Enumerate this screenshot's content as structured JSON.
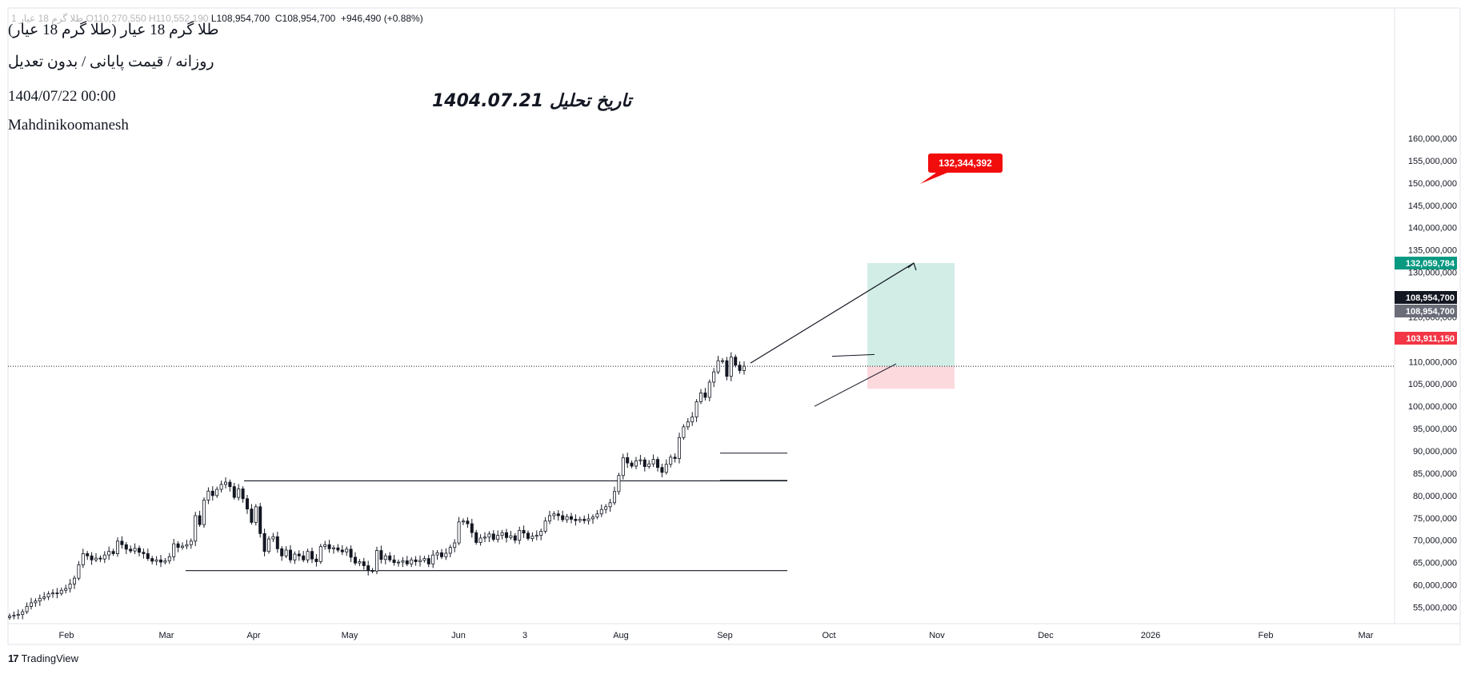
{
  "header": {
    "ohlc_faded": "1 طلا گرم 18 عیار O110,270,550  H110,552,190",
    "ohlc_low": "L108,954,700",
    "ohlc_close": "C108,954,700",
    "ohlc_change": "+946,490 (+0.88%)"
  },
  "info": {
    "symbol": "طلا گرم 18 عیار (طلا گرم 18 عیار)",
    "settings": "روزانه / قیمت پایانی / بدون تعدیل",
    "datetime": "1404/07/22 00:00",
    "author": "Mahdinikoomanesh"
  },
  "annotation": "تاریخ تحلیل 1404.07.21",
  "branding": {
    "logo_mark": "17",
    "name": "TradingView"
  },
  "colors": {
    "up": "#ffffff",
    "down": "#131722",
    "target_zone": "#d1ede6",
    "stop_zone": "#fcd9dd",
    "target_label": "#089981",
    "stop_label": "#f23645",
    "callout": "#f20d0d",
    "last_price_label": "#131722",
    "ref_price_label": "#6a6d78"
  },
  "chart_data": {
    "type": "candlestick",
    "x_tick_labels": [
      "Feb",
      "Mar",
      "Apr",
      "May",
      "Jun",
      "3",
      "Aug",
      "Sep",
      "Oct",
      "Nov",
      "Dec",
      "2026",
      "Feb",
      "Mar"
    ],
    "y_tick_labels": [
      "160,000,000",
      "155,000,000",
      "150,000,000",
      "145,000,000",
      "140,000,000",
      "135,000,000",
      "130,000,000",
      "125,000,000",
      "120,000,000",
      "115,000,000",
      "110,000,000",
      "105,000,000",
      "100,000,000",
      "95,000,000",
      "90,000,000",
      "85,000,000",
      "80,000,000",
      "75,000,000",
      "70,000,000",
      "65,000,000",
      "60,000,000",
      "55,000,000"
    ],
    "y_ticks": [
      160000000,
      155000000,
      150000000,
      145000000,
      140000000,
      135000000,
      130000000,
      125000000,
      120000000,
      115000000,
      110000000,
      105000000,
      100000000,
      95000000,
      90000000,
      85000000,
      80000000,
      75000000,
      70000000,
      65000000,
      60000000,
      55000000
    ],
    "ylim": [
      50000000,
      163000000
    ],
    "series_close_by_session": [
      53000000,
      53200000,
      53400000,
      54000000,
      55200000,
      56000000,
      56400000,
      57000000,
      57300000,
      58000000,
      58200000,
      58100000,
      58800000,
      59200000,
      60200000,
      61500000,
      64500000,
      67000000,
      66500000,
      65600000,
      66000000,
      65800000,
      66700000,
      67500000,
      67000000,
      69800000,
      69000000,
      68000000,
      67600000,
      68200000,
      67300000,
      67000000,
      65900000,
      65300000,
      65600000,
      65100000,
      65400000,
      66300000,
      69200000,
      68400000,
      68700000,
      69000000,
      69800000,
      75500000,
      73500000,
      79000000,
      81000000,
      80000000,
      81400000,
      82500000,
      83000000,
      82000000,
      79600000,
      81500000,
      79300000,
      77000000,
      74000000,
      77500000,
      71500000,
      67500000,
      70300000,
      70800000,
      68100000,
      66500000,
      67800000,
      65600000,
      66900000,
      66500000,
      65600000,
      67500000,
      65800000,
      65200000,
      68600000,
      69000000,
      68100000,
      68300000,
      67800000,
      67400000,
      68000000,
      66200000,
      64900000,
      65200000,
      64300000,
      63200000,
      63100000,
      67700000,
      65700000,
      66500000,
      65600000,
      65000000,
      65100000,
      65400000,
      64700000,
      65600000,
      65200000,
      65500000,
      65900000,
      64700000,
      66700000,
      67200000,
      66300000,
      67100000,
      68400000,
      69400000,
      74100000,
      74300000,
      73700000,
      71700000,
      69500000,
      70500000,
      70700000,
      71400000,
      70200000,
      71100000,
      71700000,
      70600000,
      71000000,
      70000000,
      72200000,
      71600000,
      70400000,
      70900000,
      71100000,
      72000000,
      74300000,
      75500000,
      75900000,
      75500000,
      74600000,
      75300000,
      74700000,
      74400000,
      74700000,
      74400000,
      74800000,
      75200000,
      75900000,
      76900000,
      77500000,
      78400000,
      80900000,
      84500000,
      88500000,
      87300000,
      86600000,
      87800000,
      88000000,
      86500000,
      87100000,
      88100000,
      86300000,
      85200000,
      87000000,
      88600000,
      88300000,
      93000000,
      95400000,
      96500000,
      97600000,
      101000000,
      103000000,
      102000000,
      105400000,
      107700000,
      110200000,
      110200000,
      106700000,
      111000000,
      109200000,
      108000000,
      108954700
    ],
    "range_box_low": 63200000,
    "range_box_high": 83300000,
    "flag_low": 83400000,
    "flag_high": 89500000,
    "position": {
      "entry": 108954700,
      "target": 132059784,
      "stop": 103911150,
      "projected_target": 132344392
    },
    "labels": {
      "projected_target": "132,344,392",
      "target": "132,059,784",
      "last_price": "108,954,700",
      "ref_price": "108,954,700",
      "stop": "103,911,150"
    },
    "grid": false
  }
}
